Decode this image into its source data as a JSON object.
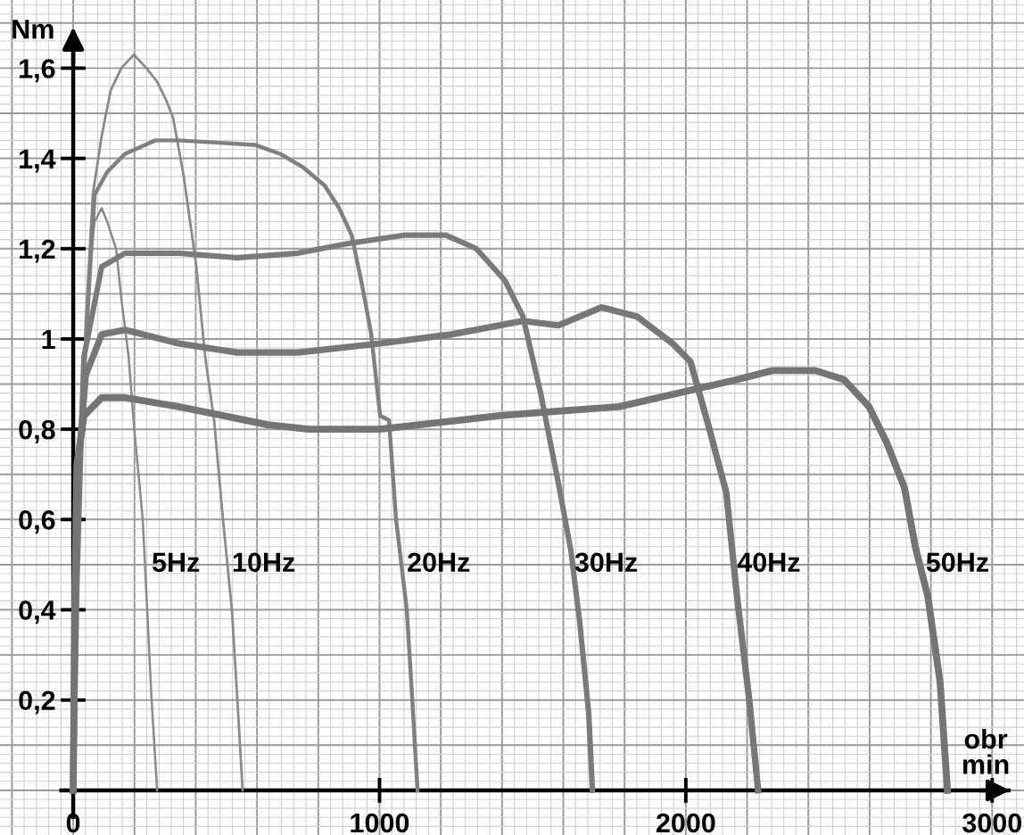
{
  "chart_data": {
    "type": "line",
    "xlabel": "obr\nmin",
    "ylabel": "Nm",
    "xlim": [
      -239,
      3104
    ],
    "ylim": [
      -0.099,
      1.751
    ],
    "xticks": [
      0,
      1000,
      2000,
      3000
    ],
    "yticks": [
      {
        "value": 0.2,
        "label": "0,2"
      },
      {
        "value": 0.4,
        "label": "0,4"
      },
      {
        "value": 0.6,
        "label": "0,6"
      },
      {
        "value": 0.8,
        "label": "0,8"
      },
      1,
      {
        "value": 1.2,
        "label": "1,2"
      },
      {
        "value": 1.4,
        "label": "1,4"
      },
      {
        "value": 1.6,
        "label": "1,6"
      }
    ],
    "grid": true,
    "legend": false,
    "marker": "none",
    "line_style": "solid",
    "series": [
      {
        "color": "#8a8a8a",
        "x": [
          0,
          12,
          29,
          52,
          70,
          93,
          111,
          140,
          157,
          181,
          198,
          227,
          256,
          274
        ],
        "values": [
          0,
          0.45,
          0.84,
          1.16,
          1.26,
          1.29,
          1.26,
          1.2,
          1.09,
          0.96,
          0.81,
          0.6,
          0.2,
          0
        ]
      },
      {
        "color": "#8a8a8a",
        "x": [
          0,
          17,
          41,
          64,
          93,
          122,
          157,
          198,
          239,
          274,
          303,
          326,
          361,
          402,
          431,
          460,
          489,
          518,
          536,
          553
        ],
        "values": [
          0,
          0.57,
          1.04,
          1.32,
          1.45,
          1.55,
          1.6,
          1.63,
          1.6,
          1.57,
          1.53,
          1.49,
          1.36,
          1.16,
          0.96,
          0.82,
          0.6,
          0.4,
          0.2,
          0
        ]
      },
      {
        "color": "#808080",
        "x": [
          0,
          12,
          29,
          52,
          70,
          111,
          169,
          268,
          344,
          594,
          676,
          751,
          821,
          868,
          909,
          943,
          973,
          1002,
          1031,
          1054,
          1089,
          1107,
          1124
        ],
        "values": [
          0,
          0.45,
          0.84,
          1.12,
          1.32,
          1.37,
          1.41,
          1.44,
          1.44,
          1.43,
          1.41,
          1.38,
          1.34,
          1.29,
          1.23,
          1.12,
          1.01,
          0.83,
          0.82,
          0.6,
          0.4,
          0.2,
          0
        ]
      },
      {
        "color": "#7a7a7a",
        "x": [
          0,
          12,
          23,
          35,
          93,
          169,
          344,
          536,
          734,
          885,
          1083,
          1217,
          1316,
          1409,
          1468,
          1526,
          1584,
          1625,
          1654,
          1683,
          1695
        ],
        "values": [
          0,
          0.45,
          0.72,
          0.96,
          1.16,
          1.19,
          1.19,
          1.18,
          1.19,
          1.21,
          1.23,
          1.23,
          1.2,
          1.13,
          1.05,
          0.88,
          0.68,
          0.53,
          0.37,
          0.17,
          0
        ]
      },
      {
        "color": "#777777",
        "x": [
          0,
          6,
          17,
          41,
          93,
          169,
          344,
          536,
          734,
          1002,
          1234,
          1468,
          1584,
          1724,
          1840,
          1957,
          2015,
          2073,
          2132,
          2167,
          2207,
          2236
        ],
        "values": [
          0,
          0.45,
          0.72,
          0.92,
          1.01,
          1.02,
          0.99,
          0.97,
          0.97,
          0.99,
          1.01,
          1.04,
          1.03,
          1.07,
          1.05,
          0.99,
          0.95,
          0.81,
          0.66,
          0.43,
          0.2,
          0
        ]
      },
      {
        "color": "#747474",
        "x": [
          0,
          6,
          12,
          35,
          93,
          169,
          344,
          635,
          769,
          1000,
          1392,
          1584,
          1782,
          1974,
          2167,
          2283,
          2423,
          2516,
          2598,
          2656,
          2714,
          2749,
          2790,
          2830,
          2854
        ],
        "values": [
          0,
          0.45,
          0.72,
          0.83,
          0.87,
          0.87,
          0.85,
          0.81,
          0.8,
          0.8,
          0.83,
          0.84,
          0.85,
          0.88,
          0.91,
          0.93,
          0.93,
          0.91,
          0.85,
          0.77,
          0.67,
          0.54,
          0.43,
          0.24,
          0
        ]
      }
    ],
    "annotations": [
      {
        "text": "5Hz",
        "x": 256,
        "y": 0.5
      },
      {
        "text": "10Hz",
        "x": 518,
        "y": 0.5
      },
      {
        "text": "20Hz",
        "x": 1089,
        "y": 0.5
      },
      {
        "text": "30Hz",
        "x": 1636,
        "y": 0.5
      },
      {
        "text": "40Hz",
        "x": 2167,
        "y": 0.5
      },
      {
        "text": "50Hz",
        "x": 2783,
        "y": 0.5
      }
    ]
  }
}
